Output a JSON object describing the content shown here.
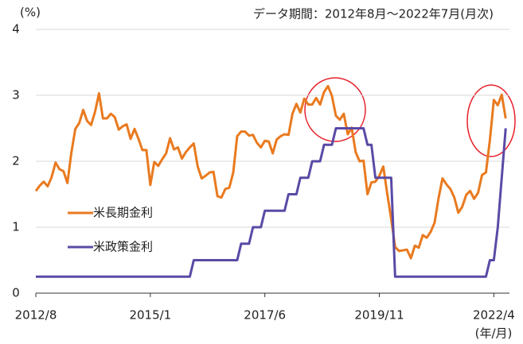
{
  "chart_data": {
    "type": "line",
    "title": "データ期間：2012年8月～2022年7月(月次)",
    "ylabel": "(%)",
    "xlabel": "(年/月)",
    "categories": [
      "2012/8",
      null,
      null,
      null,
      null,
      null,
      null,
      null,
      null,
      null,
      null,
      null,
      null,
      null,
      null,
      null,
      null,
      null,
      null,
      null,
      null,
      null,
      null,
      null,
      null,
      null,
      null,
      null,
      null,
      "2015/1",
      null,
      null,
      null,
      null,
      null,
      null,
      null,
      null,
      null,
      null,
      null,
      null,
      null,
      null,
      null,
      null,
      null,
      null,
      null,
      null,
      null,
      null,
      null,
      null,
      null,
      null,
      null,
      null,
      "2017/6",
      null,
      null,
      null,
      null,
      null,
      null,
      null,
      null,
      null,
      null,
      null,
      null,
      null,
      null,
      null,
      null,
      null,
      null,
      null,
      null,
      null,
      null,
      null,
      null,
      null,
      null,
      null,
      null,
      "2019/11",
      null,
      null,
      null,
      null,
      null,
      null,
      null,
      null,
      null,
      null,
      null,
      null,
      null,
      null,
      null,
      null,
      null,
      null,
      null,
      null,
      null,
      null,
      null,
      null,
      null,
      null,
      null,
      null,
      "2022/4",
      null,
      null,
      null
    ],
    "series": [
      {
        "name": "米長期金利",
        "color": "#e97a1f",
        "values": [
          1.55,
          1.63,
          1.69,
          1.62,
          1.76,
          1.98,
          1.88,
          1.85,
          1.67,
          2.13,
          2.49,
          2.58,
          2.78,
          2.61,
          2.55,
          2.75,
          3.03,
          2.65,
          2.65,
          2.72,
          2.67,
          2.48,
          2.53,
          2.56,
          2.34,
          2.49,
          2.34,
          2.17,
          2.17,
          1.64,
          1.99,
          1.93,
          2.03,
          2.12,
          2.35,
          2.18,
          2.21,
          2.04,
          2.14,
          2.21,
          2.27,
          1.92,
          1.74,
          1.78,
          1.83,
          1.84,
          1.47,
          1.45,
          1.58,
          1.6,
          1.83,
          2.38,
          2.45,
          2.45,
          2.39,
          2.4,
          2.28,
          2.21,
          2.31,
          2.3,
          2.12,
          2.33,
          2.38,
          2.41,
          2.4,
          2.72,
          2.87,
          2.74,
          2.95,
          2.86,
          2.86,
          2.96,
          2.86,
          3.05,
          3.14,
          2.99,
          2.69,
          2.63,
          2.72,
          2.41,
          2.51,
          2.14,
          2.0,
          2.01,
          1.5,
          1.68,
          1.69,
          1.78,
          1.92,
          1.51,
          1.13,
          0.7,
          0.64,
          0.65,
          0.66,
          0.53,
          0.72,
          0.69,
          0.88,
          0.84,
          0.93,
          1.07,
          1.44,
          1.74,
          1.65,
          1.58,
          1.45,
          1.22,
          1.31,
          1.49,
          1.55,
          1.43,
          1.52,
          1.79,
          1.83,
          2.32,
          2.93,
          2.85,
          3.01,
          2.65
        ]
      },
      {
        "name": "米政策金利",
        "color": "#5a4aa6",
        "values": [
          0.25,
          0.25,
          0.25,
          0.25,
          0.25,
          0.25,
          0.25,
          0.25,
          0.25,
          0.25,
          0.25,
          0.25,
          0.25,
          0.25,
          0.25,
          0.25,
          0.25,
          0.25,
          0.25,
          0.25,
          0.25,
          0.25,
          0.25,
          0.25,
          0.25,
          0.25,
          0.25,
          0.25,
          0.25,
          0.25,
          0.25,
          0.25,
          0.25,
          0.25,
          0.25,
          0.25,
          0.25,
          0.25,
          0.25,
          0.25,
          0.5,
          0.5,
          0.5,
          0.5,
          0.5,
          0.5,
          0.5,
          0.5,
          0.5,
          0.5,
          0.5,
          0.5,
          0.75,
          0.75,
          0.75,
          1.0,
          1.0,
          1.0,
          1.25,
          1.25,
          1.25,
          1.25,
          1.25,
          1.25,
          1.5,
          1.5,
          1.5,
          1.75,
          1.75,
          1.75,
          2.0,
          2.0,
          2.0,
          2.25,
          2.25,
          2.25,
          2.5,
          2.5,
          2.5,
          2.5,
          2.5,
          2.5,
          2.5,
          2.5,
          2.25,
          2.25,
          1.75,
          1.75,
          1.75,
          1.75,
          1.75,
          0.25,
          0.25,
          0.25,
          0.25,
          0.25,
          0.25,
          0.25,
          0.25,
          0.25,
          0.25,
          0.25,
          0.25,
          0.25,
          0.25,
          0.25,
          0.25,
          0.25,
          0.25,
          0.25,
          0.25,
          0.25,
          0.25,
          0.25,
          0.25,
          0.5,
          0.5,
          1.0,
          1.75,
          2.5
        ]
      }
    ],
    "ylim": [
      0,
      4
    ],
    "yticks": [
      0,
      1,
      2,
      3,
      4
    ],
    "grid": true,
    "legend": "left"
  }
}
